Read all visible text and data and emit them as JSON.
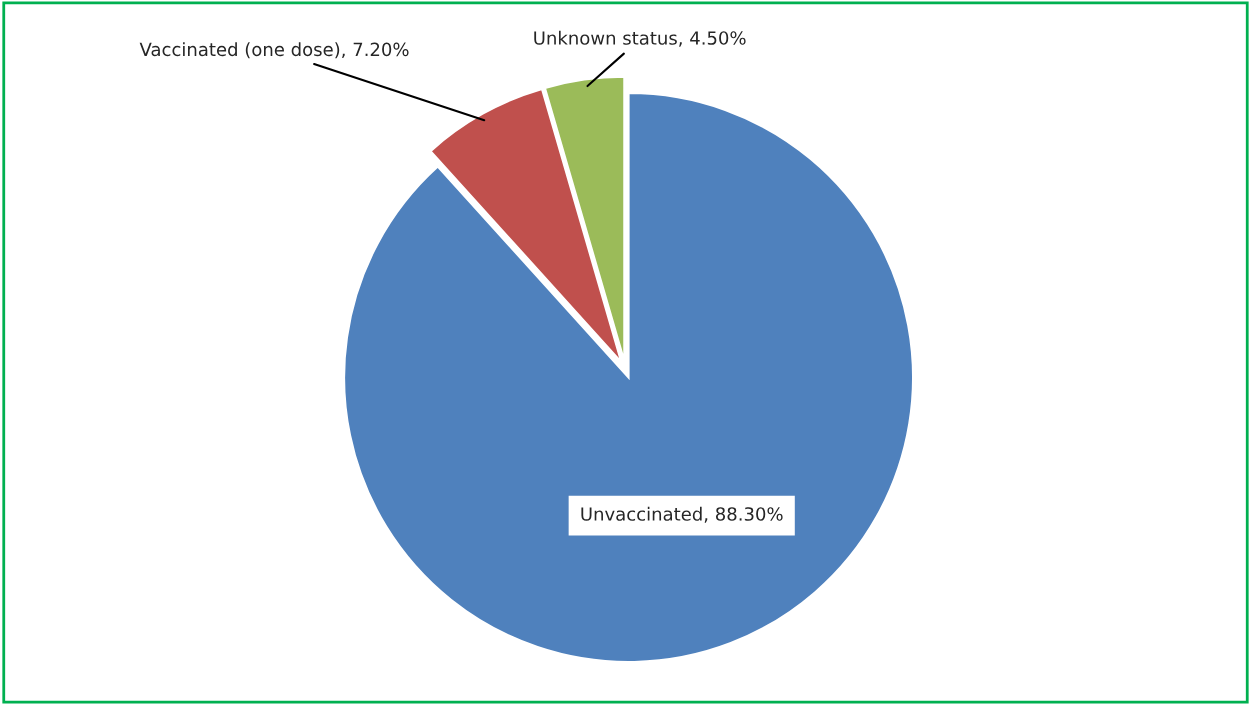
{
  "chart_data": {
    "type": "pie",
    "categories": [
      "Unvaccinated",
      "Vaccinated (one dose)",
      "Unknown status"
    ],
    "values": [
      88.3,
      7.2,
      4.5
    ],
    "colors": [
      "#4f81bd",
      "#c0504d",
      "#9bbb59"
    ],
    "value_labels": [
      "88.30%",
      "7.20%",
      "4.50%"
    ]
  }
}
